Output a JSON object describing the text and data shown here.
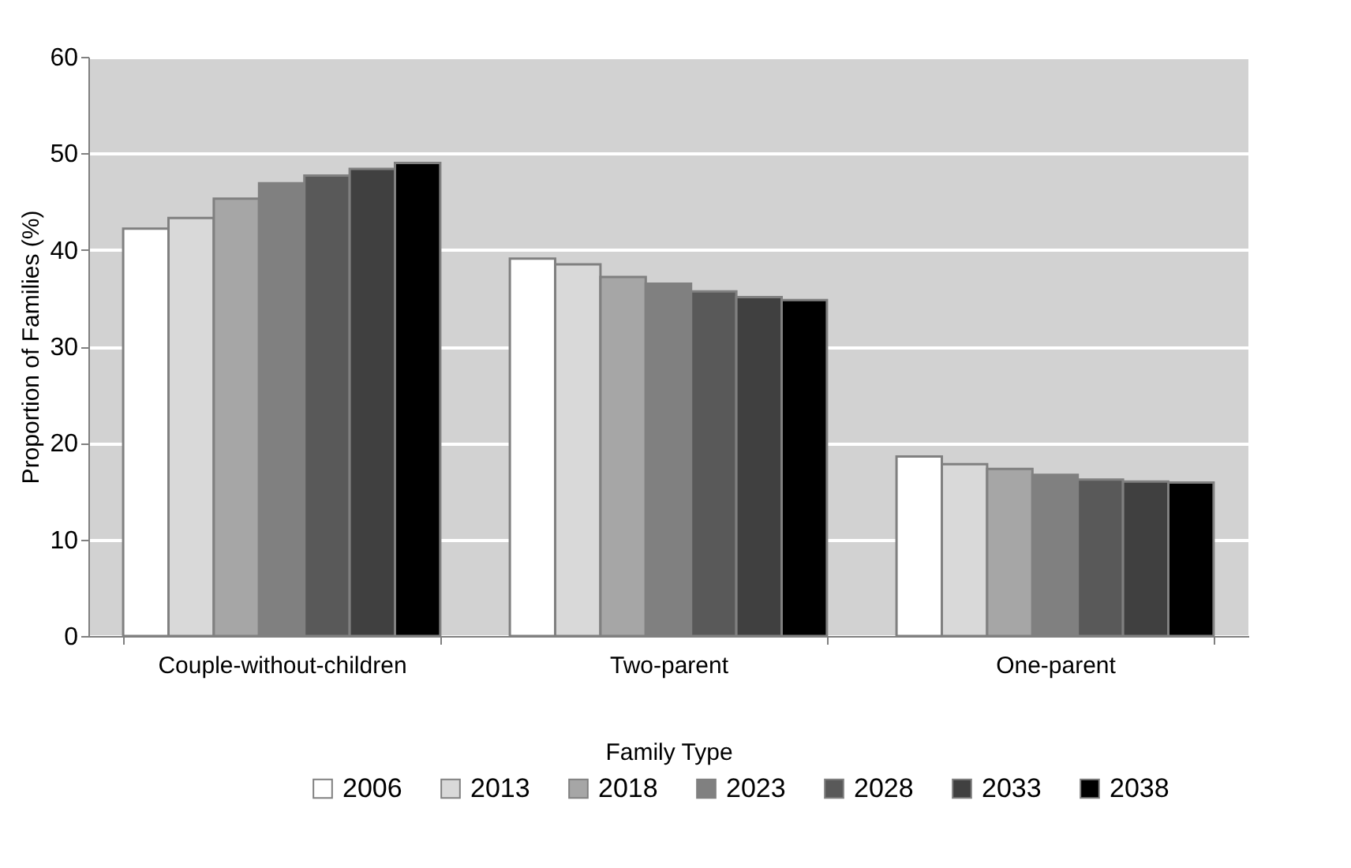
{
  "chart_data": {
    "type": "bar",
    "xlabel": "Family Type",
    "ylabel": "Proportion of Families (%)",
    "categories": [
      "Couple-without-children",
      "Two-parent",
      "One-parent"
    ],
    "series": [
      {
        "name": "2006",
        "color": "#ffffff",
        "values": [
          42.2,
          39.1,
          18.6
        ]
      },
      {
        "name": "2013",
        "color": "#d9d9d9",
        "values": [
          43.3,
          38.5,
          17.8
        ]
      },
      {
        "name": "2018",
        "color": "#a6a6a6",
        "values": [
          45.3,
          37.2,
          17.3
        ]
      },
      {
        "name": "2023",
        "color": "#808080",
        "values": [
          46.9,
          36.5,
          16.7
        ]
      },
      {
        "name": "2028",
        "color": "#595959",
        "values": [
          47.7,
          35.7,
          16.2
        ]
      },
      {
        "name": "2033",
        "color": "#404040",
        "values": [
          48.4,
          35.1,
          16.0
        ]
      },
      {
        "name": "2038",
        "color": "#000000",
        "values": [
          49.0,
          34.8,
          15.9
        ]
      }
    ],
    "ylim": [
      0,
      60
    ],
    "yticks": [
      0,
      10,
      20,
      30,
      40,
      50,
      60
    ],
    "grid": "y",
    "legend": "bottom"
  }
}
